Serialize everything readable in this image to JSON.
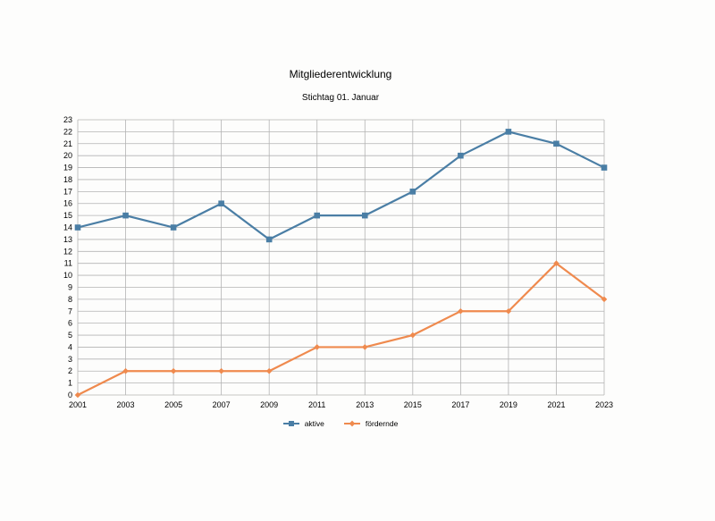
{
  "chart_data": {
    "type": "line",
    "title": "Mitgliederentwicklung",
    "subtitle": "Stichtag 01. Januar",
    "xlabel": "",
    "ylabel": "",
    "x": [
      "2001",
      "2003",
      "2005",
      "2007",
      "2009",
      "2011",
      "2013",
      "2015",
      "2017",
      "2019",
      "2021",
      "2023"
    ],
    "ylim": [
      0,
      23
    ],
    "yticks": [
      0,
      1,
      2,
      3,
      4,
      5,
      6,
      7,
      8,
      9,
      10,
      11,
      12,
      13,
      14,
      15,
      16,
      17,
      18,
      19,
      20,
      21,
      22,
      23
    ],
    "grid": true,
    "legend_position": "bottom",
    "series": [
      {
        "name": "aktive",
        "color": "#4a7ea5",
        "marker": "square",
        "values": [
          14,
          15,
          14,
          16,
          13,
          15,
          15,
          17,
          20,
          22,
          21,
          19
        ]
      },
      {
        "name": "fördernde",
        "color": "#ef8a4e",
        "marker": "diamond",
        "values": [
          0,
          2,
          2,
          2,
          2,
          4,
          4,
          5,
          7,
          7,
          11,
          8
        ]
      }
    ]
  }
}
